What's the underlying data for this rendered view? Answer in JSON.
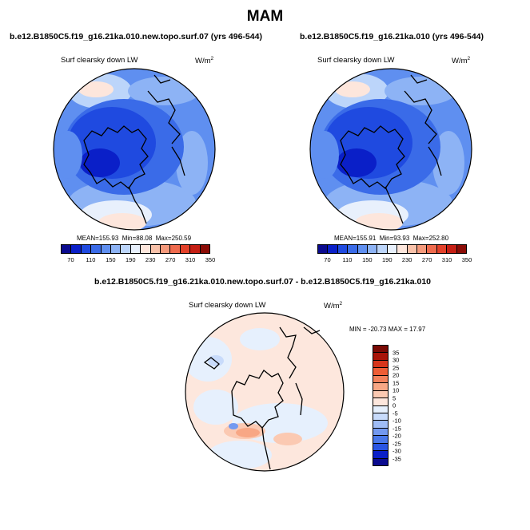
{
  "title": "MAM",
  "palettes": {
    "abs": [
      "#0b0b8f",
      "#0a1fc8",
      "#1f4ae0",
      "#3a6be8",
      "#5f8ff0",
      "#8db3f5",
      "#bcd5fa",
      "#e8f0fc",
      "#fde6dc",
      "#f9c2aa",
      "#f59a7c",
      "#ef6b4e",
      "#e3412a",
      "#c51f14",
      "#8b0c06"
    ],
    "diff": [
      "#0b0b8f",
      "#0a1fc8",
      "#2a55e2",
      "#4a78ea",
      "#7399f0",
      "#9fbcf6",
      "#c8dbfb",
      "#e6f0fd",
      "#fde7dd",
      "#fbc9b2",
      "#f8a785",
      "#f3825c",
      "#ee5e36",
      "#d6361c",
      "#a81409",
      "#7a0a04"
    ]
  },
  "chart_data": [
    {
      "type": "heatmap",
      "projection": "north-polar-stereographic",
      "case": "b.e12.B1850C5.f19_g16.21ka.010.new.topo.surf.07 (yrs 496-544)",
      "variable": "Surf clearsky down LW",
      "units": "W/m",
      "units_exp": "2",
      "stats": {
        "mean_label": "MEAN=",
        "mean": "155.93",
        "min_label": "Min=",
        "min": "88.08",
        "max_label": "Max=",
        "max": "250.59"
      },
      "colorbar": {
        "orientation": "horizontal",
        "levels": [
          "70",
          "110",
          "150",
          "190",
          "230",
          "270",
          "310",
          "350"
        ]
      }
    },
    {
      "type": "heatmap",
      "projection": "north-polar-stereographic",
      "case": "b.e12.B1850C5.f19_g16.21ka.010 (yrs 496-544)",
      "variable": "Surf clearsky down LW",
      "units": "W/m",
      "units_exp": "2",
      "stats": {
        "mean_label": "MEAN=",
        "mean": "155.91",
        "min_label": "Min=",
        "min": "93.93",
        "max_label": "Max=",
        "max": "252.80"
      },
      "colorbar": {
        "orientation": "horizontal",
        "levels": [
          "70",
          "110",
          "150",
          "190",
          "230",
          "270",
          "310",
          "350"
        ]
      }
    },
    {
      "type": "heatmap",
      "projection": "north-polar-stereographic",
      "case": "b.e12.B1850C5.f19_g16.21ka.010.new.topo.surf.07 - b.e12.B1850C5.f19_g16.21ka.010",
      "variable": "Surf clearsky down LW",
      "units": "W/m",
      "units_exp": "2",
      "stats": {
        "text": "MIN = -20.73 MAX =  17.97"
      },
      "colorbar": {
        "orientation": "vertical",
        "levels": [
          "35",
          "30",
          "25",
          "20",
          "15",
          "10",
          "5",
          "0",
          "-5",
          "-10",
          "-15",
          "-20",
          "-25",
          "-30",
          "-35"
        ]
      }
    }
  ]
}
